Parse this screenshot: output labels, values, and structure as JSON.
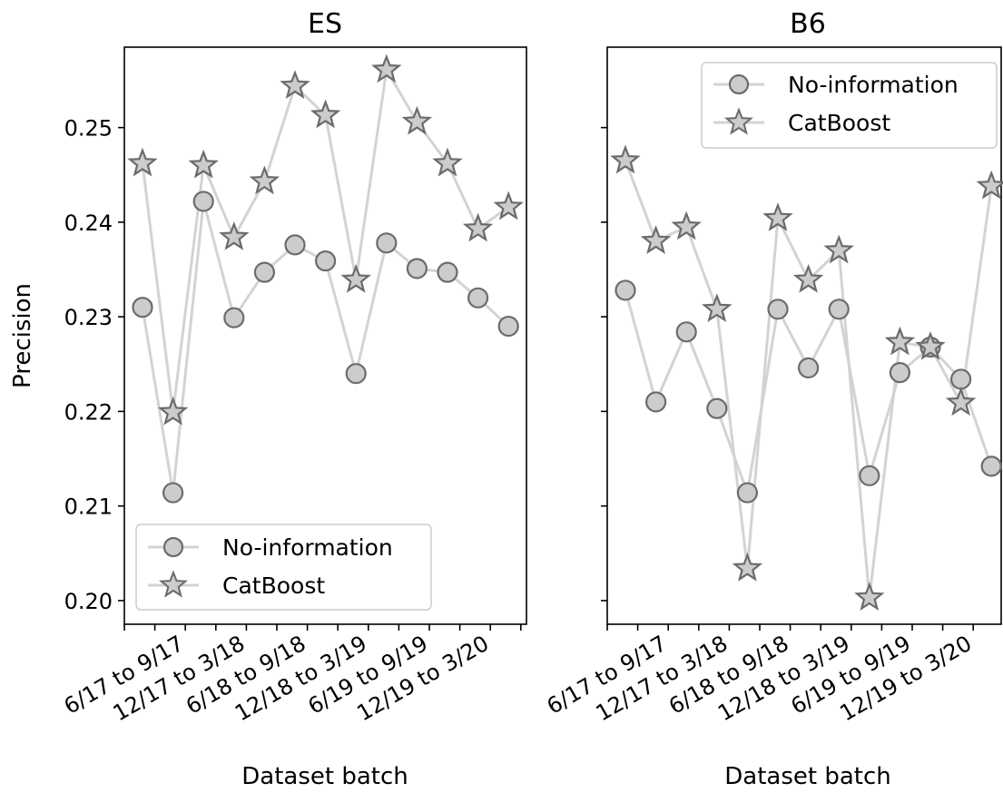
{
  "chart_data": [
    {
      "type": "line",
      "title": "ES",
      "xlabel": "Dataset batch",
      "ylabel": "Precision",
      "ylim": [
        0.1975,
        0.2585
      ],
      "yticks": [
        "0.20",
        "0.21",
        "0.22",
        "0.23",
        "0.24",
        "0.25"
      ],
      "xtick_labels": [
        "6/17 to 9/17",
        "12/17 to 3/18",
        "6/18 to 9/18",
        "12/18 to 3/19",
        "6/19 to 9/19",
        "12/19 to 3/20"
      ],
      "legend_position": "lower-left",
      "grid": false,
      "series": [
        {
          "name": "No-information",
          "marker": "circle",
          "x": [
            0,
            1,
            2,
            3,
            4,
            5,
            6,
            7,
            8,
            9,
            10,
            11,
            12
          ],
          "values": [
            0.231,
            0.2114,
            0.2422,
            0.2299,
            0.2347,
            0.2376,
            0.2359,
            0.224,
            0.2378,
            0.2351,
            0.2347,
            0.232,
            0.229
          ]
        },
        {
          "name": "CatBoost",
          "marker": "star",
          "x": [
            0,
            1,
            2,
            3,
            4,
            5,
            6,
            7,
            8,
            9,
            10,
            11,
            12
          ],
          "values": [
            0.2462,
            0.2199,
            0.246,
            0.2384,
            0.2443,
            0.2544,
            0.2513,
            0.2339,
            0.2561,
            0.2506,
            0.2462,
            0.2393,
            0.2416
          ]
        }
      ]
    },
    {
      "type": "line",
      "title": "B6",
      "xlabel": "Dataset batch",
      "ylabel": "",
      "ylim": [
        0.1975,
        0.2585
      ],
      "xtick_labels": [
        "6/17 to 9/17",
        "12/17 to 3/18",
        "6/18 to 9/18",
        "12/18 to 3/19",
        "6/19 to 9/19",
        "12/19 to 3/20"
      ],
      "legend_position": "upper-right",
      "grid": false,
      "series": [
        {
          "name": "No-information",
          "marker": "circle",
          "x": [
            0,
            1,
            2,
            3,
            4,
            5,
            6,
            7,
            8,
            9,
            10,
            11,
            12
          ],
          "values": [
            0.2328,
            0.221,
            0.2284,
            0.2203,
            0.2114,
            0.2308,
            0.2246,
            0.2308,
            0.2132,
            0.2241,
            0.2268,
            0.2234,
            0.2142
          ]
        },
        {
          "name": "CatBoost",
          "marker": "star",
          "x": [
            0,
            1,
            2,
            3,
            4,
            5,
            6,
            7,
            8,
            9,
            10,
            11,
            12
          ],
          "values": [
            0.2465,
            0.238,
            0.2395,
            0.2308,
            0.2034,
            0.2404,
            0.2339,
            0.237,
            0.2003,
            0.2273,
            0.2268,
            0.2209,
            0.2438
          ]
        }
      ]
    }
  ],
  "colors": {
    "line": "#d3d3d3",
    "marker_fill": "#cccccc",
    "marker_edge": "#6b6b6b",
    "legend_border": "#cccccc"
  }
}
